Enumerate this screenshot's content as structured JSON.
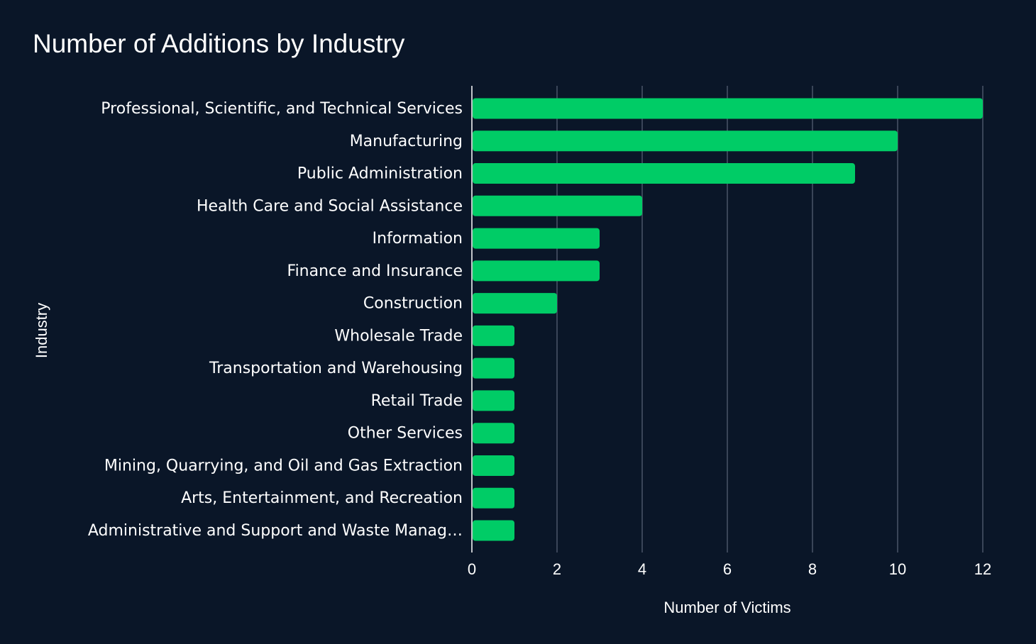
{
  "chart_data": {
    "type": "bar",
    "orientation": "horizontal",
    "title": "Number of Additions by Industry",
    "xlabel": "Number of Victims",
    "ylabel": "Industry",
    "categories": [
      "Professional, Scientific, and Technical Services",
      "Manufacturing",
      "Public Administration",
      "Health Care and Social Assistance",
      "Information",
      "Finance and Insurance",
      "Construction",
      "Wholesale Trade",
      "Transportation and Warehousing",
      "Retail Trade",
      "Other Services",
      "Mining, Quarrying, and Oil and Gas Extraction",
      "Arts, Entertainment, and Recreation",
      "Administrative and Support and Waste Manag…"
    ],
    "values": [
      12,
      10,
      9,
      4,
      3,
      3,
      2,
      1,
      1,
      1,
      1,
      1,
      1,
      1
    ],
    "xticks": [
      "0",
      "2",
      "4",
      "6",
      "8",
      "10",
      "12"
    ],
    "xlim": [
      0,
      12
    ],
    "grid": true,
    "legend": "none",
    "colors": {
      "background": "#0a1628",
      "bar": "#00cc66",
      "grid": "#4a5568",
      "text": "#ffffff"
    }
  }
}
